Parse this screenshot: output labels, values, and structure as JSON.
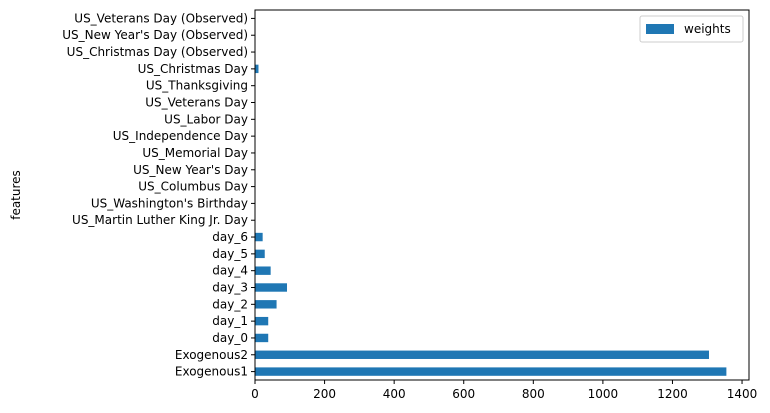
{
  "chart_data": {
    "type": "bar",
    "orientation": "horizontal",
    "categories": [
      "Exogenous1",
      "Exogenous2",
      "day_0",
      "day_1",
      "day_2",
      "day_3",
      "day_4",
      "day_5",
      "day_6",
      "US_Martin Luther King Jr. Day",
      "US_Washington's Birthday",
      "US_Columbus Day",
      "US_New Year's Day",
      "US_Memorial Day",
      "US_Independence Day",
      "US_Labor Day",
      "US_Veterans Day",
      "US_Thanksgiving",
      "US_Christmas Day",
      "US_Christmas Day (Observed)",
      "US_New Year's Day (Observed)",
      "US_Veterans Day (Observed)"
    ],
    "series": [
      {
        "name": "weights",
        "color": "#1f77b4",
        "values": [
          1355,
          1305,
          38,
          38,
          62,
          92,
          45,
          28,
          22,
          0,
          0,
          0,
          0,
          0,
          0,
          0,
          0,
          0,
          10,
          0,
          0,
          0
        ]
      }
    ],
    "xlabel": "",
    "ylabel": "features",
    "xlim": [
      0,
      1420
    ],
    "xticks": [
      0,
      200,
      400,
      600,
      800,
      1000,
      1200,
      1400
    ],
    "grid": false,
    "legend_placement": "top-right"
  }
}
